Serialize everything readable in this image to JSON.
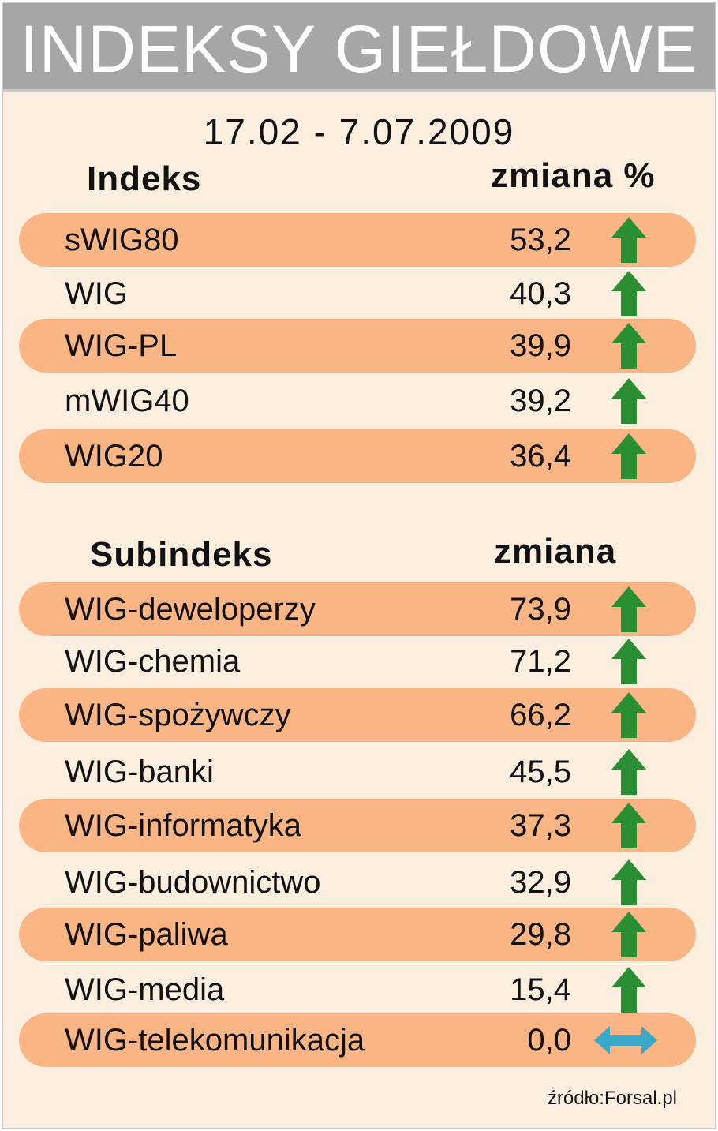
{
  "title": "INDEKSY GIEŁDOWE",
  "period": "17.02 - 7.07.2009",
  "colors": {
    "band": "#fbb585",
    "background": "#fdefdf",
    "up_arrow": "#2a8f33",
    "neutral_arrow": "#3aa9c8",
    "title_bar": "#a6a6a6"
  },
  "indeks": {
    "header_name": "Indeks",
    "header_change": "zmiana %",
    "rows": [
      {
        "name": "sWIG80",
        "value": "53,2",
        "trend": "up-arrow-icon"
      },
      {
        "name": "WIG",
        "value": "40,3",
        "trend": "up-arrow-icon"
      },
      {
        "name": "WIG-PL",
        "value": "39,9",
        "trend": "up-arrow-icon"
      },
      {
        "name": "mWIG40",
        "value": "39,2",
        "trend": "up-arrow-icon"
      },
      {
        "name": "WIG20",
        "value": "36,4",
        "trend": "up-arrow-icon"
      }
    ]
  },
  "subindeks": {
    "header_name": "Subindeks",
    "header_change": "zmiana",
    "rows": [
      {
        "name": "WIG-deweloperzy",
        "value": "73,9",
        "trend": "up-arrow-icon"
      },
      {
        "name": "WIG-chemia",
        "value": "71,2",
        "trend": "up-arrow-icon"
      },
      {
        "name": "WIG-spożywczy",
        "value": "66,2",
        "trend": "up-arrow-icon"
      },
      {
        "name": "WIG-banki",
        "value": "45,5",
        "trend": "up-arrow-icon"
      },
      {
        "name": "WIG-informatyka",
        "value": "37,3",
        "trend": "up-arrow-icon"
      },
      {
        "name": "WIG-budownictwo",
        "value": "32,9",
        "trend": "up-arrow-icon"
      },
      {
        "name": "WIG-paliwa",
        "value": "29,8",
        "trend": "up-arrow-icon"
      },
      {
        "name": "WIG-media",
        "value": "15,4",
        "trend": "up-arrow-icon"
      },
      {
        "name": "WIG-telekomunikacja",
        "value": "0,0",
        "trend": "left-right-arrow-icon"
      }
    ]
  },
  "source": "źródło:Forsal.pl",
  "chart_data": {
    "type": "table",
    "title": "INDEKSY GIEŁDOWE",
    "subtitle": "17.02 - 7.07.2009",
    "tables": [
      {
        "columns": [
          "Indeks",
          "zmiana %"
        ],
        "categories": [
          "sWIG80",
          "WIG",
          "WIG-PL",
          "mWIG40",
          "WIG20"
        ],
        "values": [
          53.2,
          40.3,
          39.9,
          39.2,
          36.4
        ]
      },
      {
        "columns": [
          "Subindeks",
          "zmiana"
        ],
        "categories": [
          "WIG-deweloperzy",
          "WIG-chemia",
          "WIG-spożywczy",
          "WIG-banki",
          "WIG-informatyka",
          "WIG-budownictwo",
          "WIG-paliwa",
          "WIG-media",
          "WIG-telekomunikacja"
        ],
        "values": [
          73.9,
          71.2,
          66.2,
          45.5,
          37.3,
          32.9,
          29.8,
          15.4,
          0.0
        ]
      }
    ]
  }
}
